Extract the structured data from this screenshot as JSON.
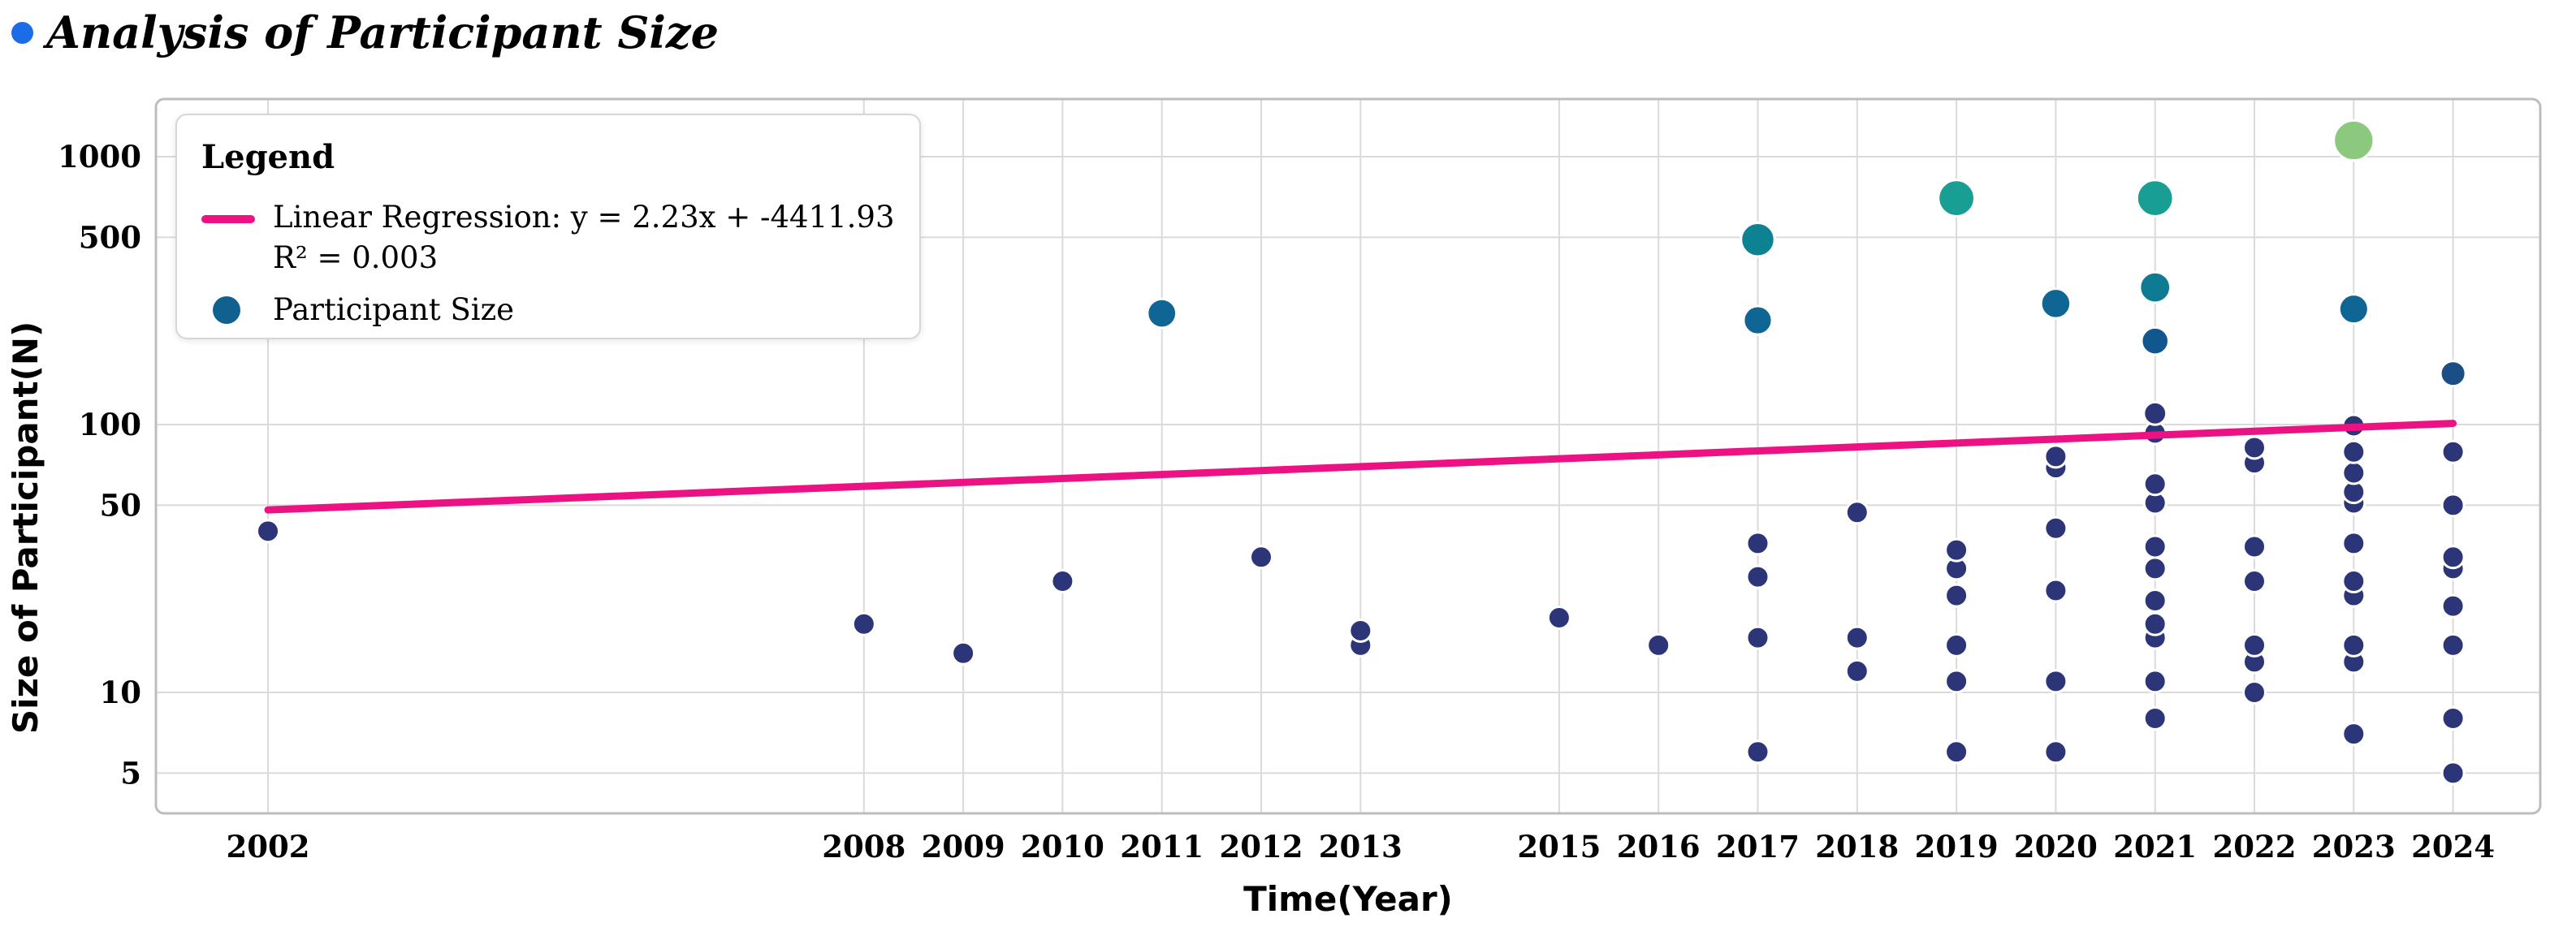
{
  "header": {
    "title": "Analysis of Participant Size",
    "bullet_color": "#1b6ce8"
  },
  "legend": {
    "heading": "Legend",
    "regression_label_line1": "Linear Regression: y = 2.23x + -4411.93",
    "regression_label_line2": "R² = 0.003",
    "scatter_label": "Participant Size",
    "line_swatch_color": "#ed1283",
    "marker_swatch_color": "#11618f"
  },
  "chart_data": {
    "type": "scatter",
    "title": "Analysis of Participant Size",
    "xlabel": "Time(Year)",
    "ylabel": "Size of Participant(N)",
    "y_scale": "log",
    "grid": true,
    "legend_position": "upper left",
    "x_ticks": [
      2002,
      2008,
      2009,
      2010,
      2011,
      2012,
      2013,
      2015,
      2016,
      2017,
      2018,
      2019,
      2020,
      2021,
      2022,
      2023,
      2024
    ],
    "y_ticks": [
      5,
      10,
      50,
      100,
      500,
      1000
    ],
    "xlim": [
      2000.9,
      2024.9
    ],
    "ylim": [
      3.5,
      1640
    ],
    "series": [
      {
        "year": 2002,
        "values": [
          40
        ]
      },
      {
        "year": 2008,
        "values": [
          18
        ]
      },
      {
        "year": 2009,
        "values": [
          14
        ]
      },
      {
        "year": 2010,
        "values": [
          26
        ]
      },
      {
        "year": 2011,
        "values": [
          260
        ]
      },
      {
        "year": 2012,
        "values": [
          32
        ]
      },
      {
        "year": 2013,
        "values": [
          17,
          15
        ]
      },
      {
        "year": 2015,
        "values": [
          19
        ]
      },
      {
        "year": 2016,
        "values": [
          15
        ]
      },
      {
        "year": 2017,
        "values": [
          490,
          245,
          36,
          27,
          16,
          6
        ]
      },
      {
        "year": 2018,
        "values": [
          47,
          16,
          12
        ]
      },
      {
        "year": 2019,
        "values": [
          700,
          34,
          29,
          23,
          15,
          11,
          6
        ]
      },
      {
        "year": 2020,
        "values": [
          283,
          76,
          69,
          41,
          24,
          11,
          6
        ]
      },
      {
        "year": 2021,
        "values": [
          700,
          325,
          205,
          110,
          93,
          60,
          51,
          35,
          29,
          22,
          18,
          16,
          11,
          8
        ]
      },
      {
        "year": 2022,
        "values": [
          82,
          72,
          35,
          26,
          15,
          13,
          10
        ]
      },
      {
        "year": 2023,
        "values": [
          1150,
          270,
          99,
          79,
          66,
          56,
          51,
          36,
          26,
          23,
          15,
          13,
          7
        ]
      },
      {
        "year": 2024,
        "values": [
          155,
          79,
          50,
          32,
          29,
          21,
          15,
          8,
          5
        ]
      }
    ],
    "regression": {
      "equation": "y = 2.23x + -4411.93",
      "r_squared_label": "R² = 0.003",
      "slope": 2.23,
      "intercept": -4411.93,
      "r_squared": 0.003,
      "line": [
        {
          "x": 2002,
          "y": 48
        },
        {
          "x": 2024,
          "y": 101
        }
      ]
    }
  },
  "style": {
    "grid_color": "#dadada",
    "frame_color": "#bdbdbd",
    "regression_line_color": "#ed1283",
    "point_stroke": "#ffffff",
    "color_stops": [
      [
        130,
        "#2b3577"
      ],
      [
        180,
        "#1b4e86"
      ],
      [
        240,
        "#11568e"
      ],
      [
        300,
        "#0f6695"
      ],
      [
        420,
        "#0e7b93"
      ],
      [
        600,
        "#0d8292"
      ],
      [
        900,
        "#199e94"
      ],
      [
        999999,
        "#8cc87e"
      ]
    ]
  }
}
